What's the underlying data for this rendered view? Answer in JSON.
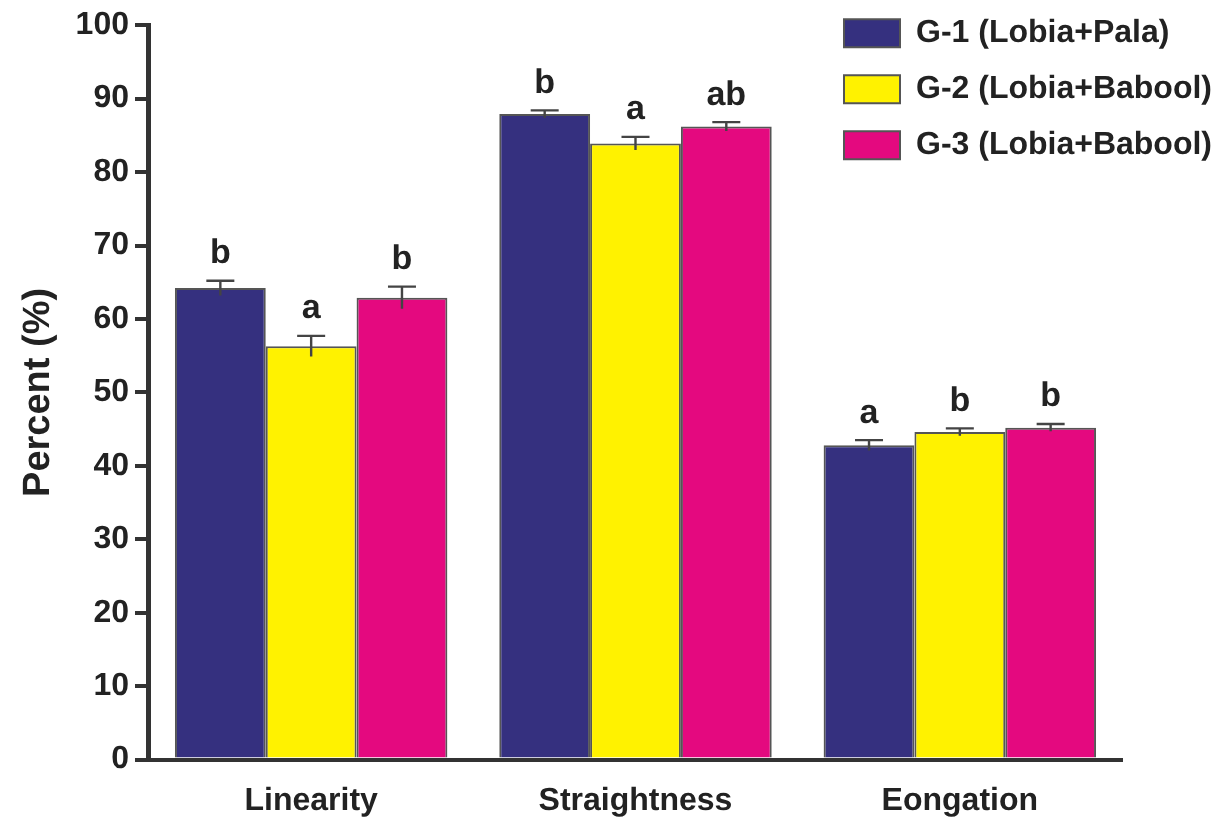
{
  "chart_data": {
    "type": "bar",
    "ylabel": "Percent (%)",
    "categories": [
      "Linearity",
      "Straightness",
      "Eongation"
    ],
    "series": [
      {
        "name": "G-1 (Lobia+Pala)",
        "color": "#35307f",
        "values": [
          64.2,
          87.9,
          42.8
        ],
        "errors": [
          1.0,
          0.5,
          0.7
        ],
        "value_labels": [
          "b",
          "b",
          "a"
        ]
      },
      {
        "name": "G-2 (Lobia+Babool)",
        "color": "#fff200",
        "values": [
          56.3,
          83.9,
          44.6
        ],
        "errors": [
          1.4,
          0.9,
          0.5
        ],
        "value_labels": [
          "a",
          "a",
          "b"
        ]
      },
      {
        "name": "G-3 (Lobia+Babool)",
        "color": "#e4097f",
        "values": [
          62.9,
          86.2,
          45.2
        ],
        "errors": [
          1.5,
          0.6,
          0.5
        ],
        "value_labels": [
          "b",
          "ab",
          "b"
        ]
      }
    ],
    "ylim": [
      0,
      100
    ],
    "yticks": [
      0,
      10,
      20,
      30,
      40,
      50,
      60,
      70,
      80,
      90,
      100
    ],
    "grid": false,
    "legend": "top right"
  }
}
